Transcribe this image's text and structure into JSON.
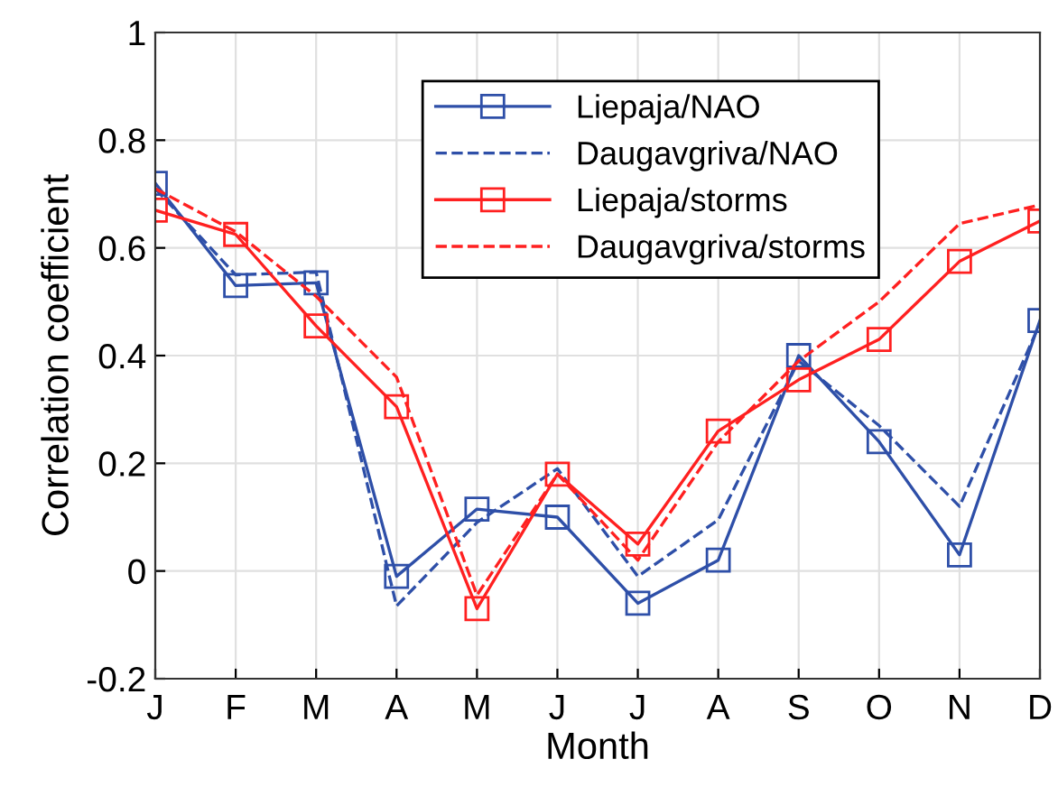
{
  "chart_data": {
    "type": "line",
    "xlabel": "Month",
    "ylabel": "Correlation coefficient",
    "categories": [
      "J",
      "F",
      "M",
      "A",
      "M",
      "J",
      "J",
      "A",
      "S",
      "O",
      "N",
      "D"
    ],
    "ylim": [
      -0.2,
      1
    ],
    "yticks": [
      {
        "value": -0.2,
        "label": "-0.2"
      },
      0,
      0.2,
      0.4,
      0.6,
      0.8,
      1
    ],
    "grid": true,
    "legend": "top",
    "series": [
      {
        "name": "Liepaja/NAO",
        "color": "#2e4fa8",
        "marker": "square",
        "line_style": "solid",
        "values": [
          0.72,
          0.53,
          0.535,
          -0.01,
          0.115,
          0.1,
          -0.06,
          0.02,
          0.4,
          0.24,
          0.03,
          0.465
        ]
      },
      {
        "name": "Daugavgriva/NAO",
        "color": "#2e4fa8",
        "marker": "none",
        "line_style": "dashed",
        "values": [
          0.71,
          0.55,
          0.555,
          -0.065,
          0.09,
          0.19,
          -0.01,
          0.095,
          0.39,
          0.27,
          0.12,
          0.46
        ]
      },
      {
        "name": "Liepaja/storms",
        "color": "#ff2020",
        "marker": "square",
        "line_style": "solid",
        "values": [
          0.67,
          0.625,
          0.455,
          0.305,
          -0.07,
          0.18,
          0.05,
          0.26,
          0.355,
          0.43,
          0.575,
          0.65
        ]
      },
      {
        "name": "Daugavgriva/storms",
        "color": "#ff2020",
        "marker": "none",
        "line_style": "dashed",
        "values": [
          0.71,
          0.63,
          0.51,
          0.36,
          -0.045,
          0.18,
          0.02,
          0.24,
          0.39,
          0.5,
          0.645,
          0.68
        ]
      }
    ]
  }
}
